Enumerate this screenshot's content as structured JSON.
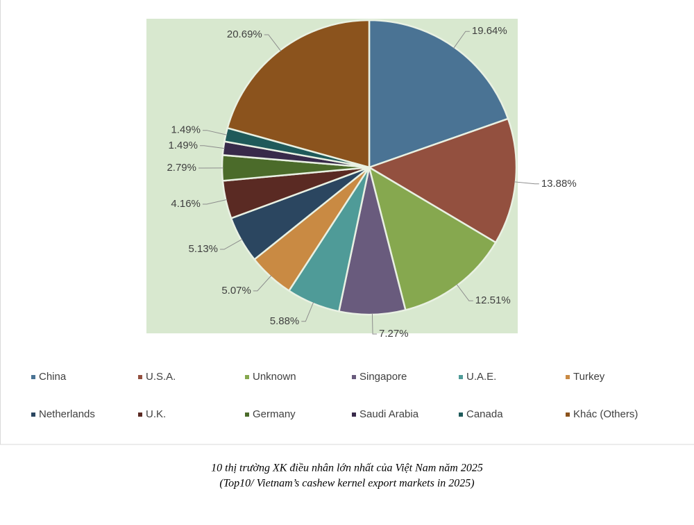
{
  "chart_data": {
    "type": "pie",
    "categories": [
      "China",
      "U.S.A.",
      "Unknown",
      "Singapore",
      "U.A.E.",
      "Turkey",
      "Netherlands",
      "U.K.",
      "Germany",
      "Saudi Arabia",
      "Canada",
      "Khác (Others)"
    ],
    "values": [
      19.64,
      13.88,
      12.51,
      7.27,
      5.88,
      5.07,
      5.13,
      4.16,
      2.79,
      1.49,
      1.49,
      20.69
    ],
    "value_labels": [
      "19.64%",
      "13.88%",
      "12.51%",
      "7.27%",
      "5.88%",
      "5.07%",
      "5.13%",
      "4.16%",
      "2.79%",
      "1.49%",
      "1.49%",
      "20.69%"
    ],
    "colors": [
      "#4a7394",
      "#93503f",
      "#86a84f",
      "#695b7d",
      "#4f9b98",
      "#c98a43",
      "#2b4660",
      "#5a2a23",
      "#4b6b2a",
      "#382a4a",
      "#1f5a5a",
      "#8b531d"
    ],
    "legend": "bottom"
  },
  "caption": {
    "line1": "10 thị trường XK điều nhân lớn nhất của Việt Nam năm 2025",
    "line2": "(Top10/ Vietnam’s cashew kernel export markets in 2025)"
  }
}
